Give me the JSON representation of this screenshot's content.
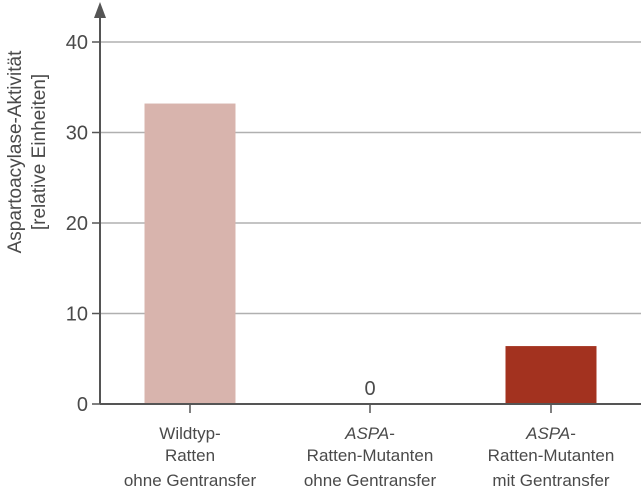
{
  "chart_data": {
    "type": "bar",
    "categories": [
      {
        "lines": [
          {
            "text": "Wildtyp-",
            "italic": false
          },
          {
            "text": "Ratten",
            "italic": false
          },
          {
            "text": "ohne Gentransfer",
            "italic": false
          }
        ]
      },
      {
        "lines": [
          {
            "text": "ASPA",
            "italic": true,
            "suffix": "-"
          },
          {
            "text": "Ratten-Mutanten",
            "italic": false
          },
          {
            "text": "ohne Gentransfer",
            "italic": false
          }
        ]
      },
      {
        "lines": [
          {
            "text": "ASPA",
            "italic": true,
            "suffix": "-"
          },
          {
            "text": "Ratten-Mutanten",
            "italic": false
          },
          {
            "text": "mit Gentransfer",
            "italic": false
          }
        ]
      }
    ],
    "values": [
      33.2,
      0,
      6.4
    ],
    "bar_colors": [
      "#d8b4ad",
      "#d8b4ad",
      "#a3321f"
    ],
    "data_labels": [
      "",
      "0",
      ""
    ],
    "ylabel_lines": [
      "Aspartoacylase-Aktivität",
      "[relative Einheiten]"
    ],
    "xlabel": "",
    "title": "",
    "ylim": [
      0,
      40
    ],
    "yticks": [
      0,
      10,
      20,
      30,
      40
    ],
    "grid": true,
    "colors": {
      "axis": "#555555",
      "grid": "#b0b0b0",
      "text": "#4a4a4a"
    }
  }
}
